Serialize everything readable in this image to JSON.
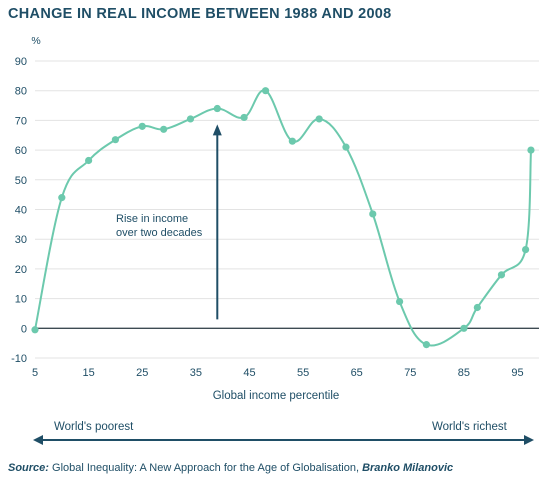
{
  "header": {
    "title": "CHANGE IN REAL INCOME BETWEEN 1988 AND 2008"
  },
  "colors": {
    "title": "#1f4e66",
    "series": "#6cc9ad",
    "axis_text": "#1f4e66",
    "grid": "#e3e3e3",
    "arrow": "#1f4e66"
  },
  "chart_data": {
    "type": "line",
    "ylabel": "%",
    "xlabel": "Global income percentile",
    "xlim": [
      5,
      99
    ],
    "ylim": [
      -10,
      90
    ],
    "x_ticks": [
      5,
      15,
      25,
      35,
      45,
      55,
      65,
      75,
      85,
      95
    ],
    "y_ticks": [
      -10,
      0,
      10,
      20,
      30,
      40,
      50,
      60,
      70,
      80,
      90
    ],
    "grid": "horizontal",
    "series": [
      {
        "x": [
          5,
          10,
          15,
          20,
          25,
          29,
          34,
          39,
          44,
          48,
          53,
          58,
          63,
          68,
          73,
          78,
          85,
          87.5,
          92,
          96.5,
          97.5
        ],
        "y": [
          -0.5,
          44,
          56.5,
          63.5,
          68,
          67,
          70.5,
          74,
          71,
          80,
          63,
          70.5,
          61,
          38.5,
          9,
          -5.5,
          0,
          7,
          18,
          26.5,
          60
        ]
      }
    ],
    "annotations": [
      {
        "text": "Rise in income over two decades",
        "arrow_at_x": 39,
        "arrow_from_y": 3,
        "arrow_to_y": 68
      }
    ]
  },
  "labels": {
    "annotation_line1": "Rise in income",
    "annotation_line2": "over two decades",
    "poorest": "World's poorest",
    "richest": "World's richest"
  },
  "source": {
    "label": "Source:",
    "work": " Global Inequality: A New Approach for the Age of Globalisation, ",
    "author": "Branko Milanovic"
  }
}
